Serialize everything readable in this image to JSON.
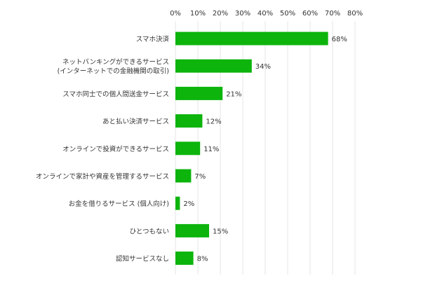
{
  "chart_data": {
    "type": "bar",
    "orientation": "horizontal",
    "categories": [
      [
        "スマホ決済"
      ],
      [
        "ネットバンキングができるサービス",
        "(インターネットでの金融機関の取引)"
      ],
      [
        "スマホ同士での個人間送金サービス"
      ],
      [
        "あと払い決済サービス"
      ],
      [
        "オンラインで投資ができるサービス"
      ],
      [
        "オンラインで家計や資産を管理するサービス"
      ],
      [
        "お金を借りるサービス (個人向け)"
      ],
      [
        "ひとつもない"
      ],
      [
        "認知サービスなし"
      ]
    ],
    "values": [
      68,
      34,
      21,
      12,
      11,
      7,
      2,
      15,
      8
    ],
    "value_labels": [
      "68%",
      "34%",
      "21%",
      "12%",
      "11%",
      "7%",
      "2%",
      "15%",
      "8%"
    ],
    "xlim": [
      0,
      80
    ],
    "ticks": [
      0,
      10,
      20,
      30,
      40,
      50,
      60,
      70,
      80
    ],
    "tick_labels": [
      "0%",
      "10%",
      "20%",
      "30%",
      "40%",
      "50%",
      "60%",
      "70%",
      "80%"
    ],
    "grid": true,
    "bar_color": "#0cb40c",
    "grid_color": "#e6e6e6",
    "text_color": "#333333"
  }
}
